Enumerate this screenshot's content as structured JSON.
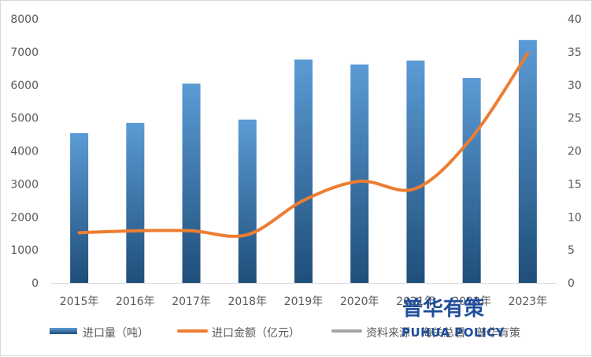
{
  "chart_data": {
    "type": "bar",
    "categories": [
      "2015年",
      "2016年",
      "2017年",
      "2018年",
      "2019年",
      "2020年",
      "2021年",
      "2022年",
      "2023年"
    ],
    "series": [
      {
        "name": "进口量（吨）",
        "type": "bar",
        "axis": "left",
        "values": [
          4540,
          4850,
          6040,
          4950,
          6770,
          6620,
          6740,
          6210,
          7360
        ],
        "color": "#2e75b6"
      },
      {
        "name": "进口金额（亿元）",
        "type": "line",
        "axis": "right",
        "values": [
          7.6,
          7.9,
          7.9,
          7.3,
          12.5,
          15.4,
          14.3,
          22.0,
          34.8
        ],
        "color": "#ed7d31"
      }
    ],
    "y_left": {
      "min": 0,
      "max": 8000,
      "ticks": [
        "0",
        "1000",
        "2000",
        "3000",
        "4000",
        "5000",
        "6000",
        "7000",
        "8000"
      ]
    },
    "y_right": {
      "min": 0,
      "max": 40,
      "ticks": [
        "0",
        "5",
        "10",
        "15",
        "20",
        "25",
        "30",
        "35",
        "40"
      ]
    },
    "legend": [
      {
        "label": "进口量（吨）",
        "kind": "bar",
        "color": "#2e75b6"
      },
      {
        "label": "进口金额（亿元）",
        "kind": "line",
        "color": "#ed7d31"
      },
      {
        "label": "资料来源：海关总署、普华有策",
        "kind": "line",
        "color": "#a5a5a5"
      }
    ],
    "legend_position": "bottom",
    "grid": false
  },
  "watermark": {
    "cn": "普华有策",
    "en": "PUHUA POLICY"
  }
}
